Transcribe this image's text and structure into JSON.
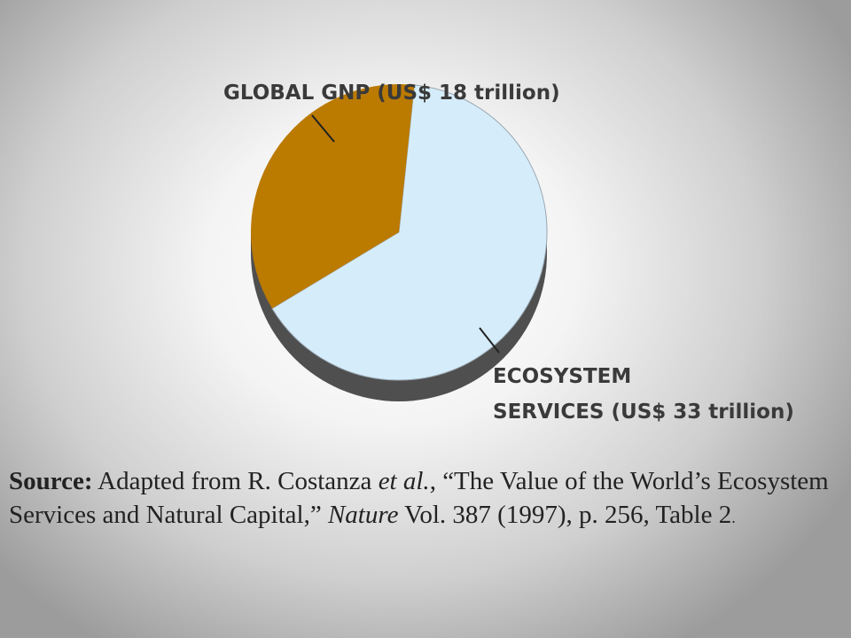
{
  "chart_data": {
    "type": "pie",
    "slices": [
      {
        "label": "ECOSYSTEM SERVICES (US$ 33 trillion)",
        "label_lines": [
          "ECOSYSTEM",
          "SERVICES (US$ 33 trillion)"
        ],
        "value": 33,
        "color": "#d5ecfb"
      },
      {
        "label": "GLOBAL GNP (US$ 18 trillion)",
        "label_lines": [
          "GLOBAL GNP (US$ 18 trillion)"
        ],
        "value": 18,
        "color": "#bb7a00"
      }
    ],
    "style": "3d",
    "units": "US$ trillion"
  },
  "source": {
    "lead": "Source:",
    "text1": " Adapted from R. Costanza ",
    "etal": "et al.",
    "text2": ", “The Value of the World’s Ecosystem Services and Natural Capital,” ",
    "journal": "Nature",
    "text3": " Vol. 387 (1997), p. 256, Table 2",
    "end": "."
  }
}
